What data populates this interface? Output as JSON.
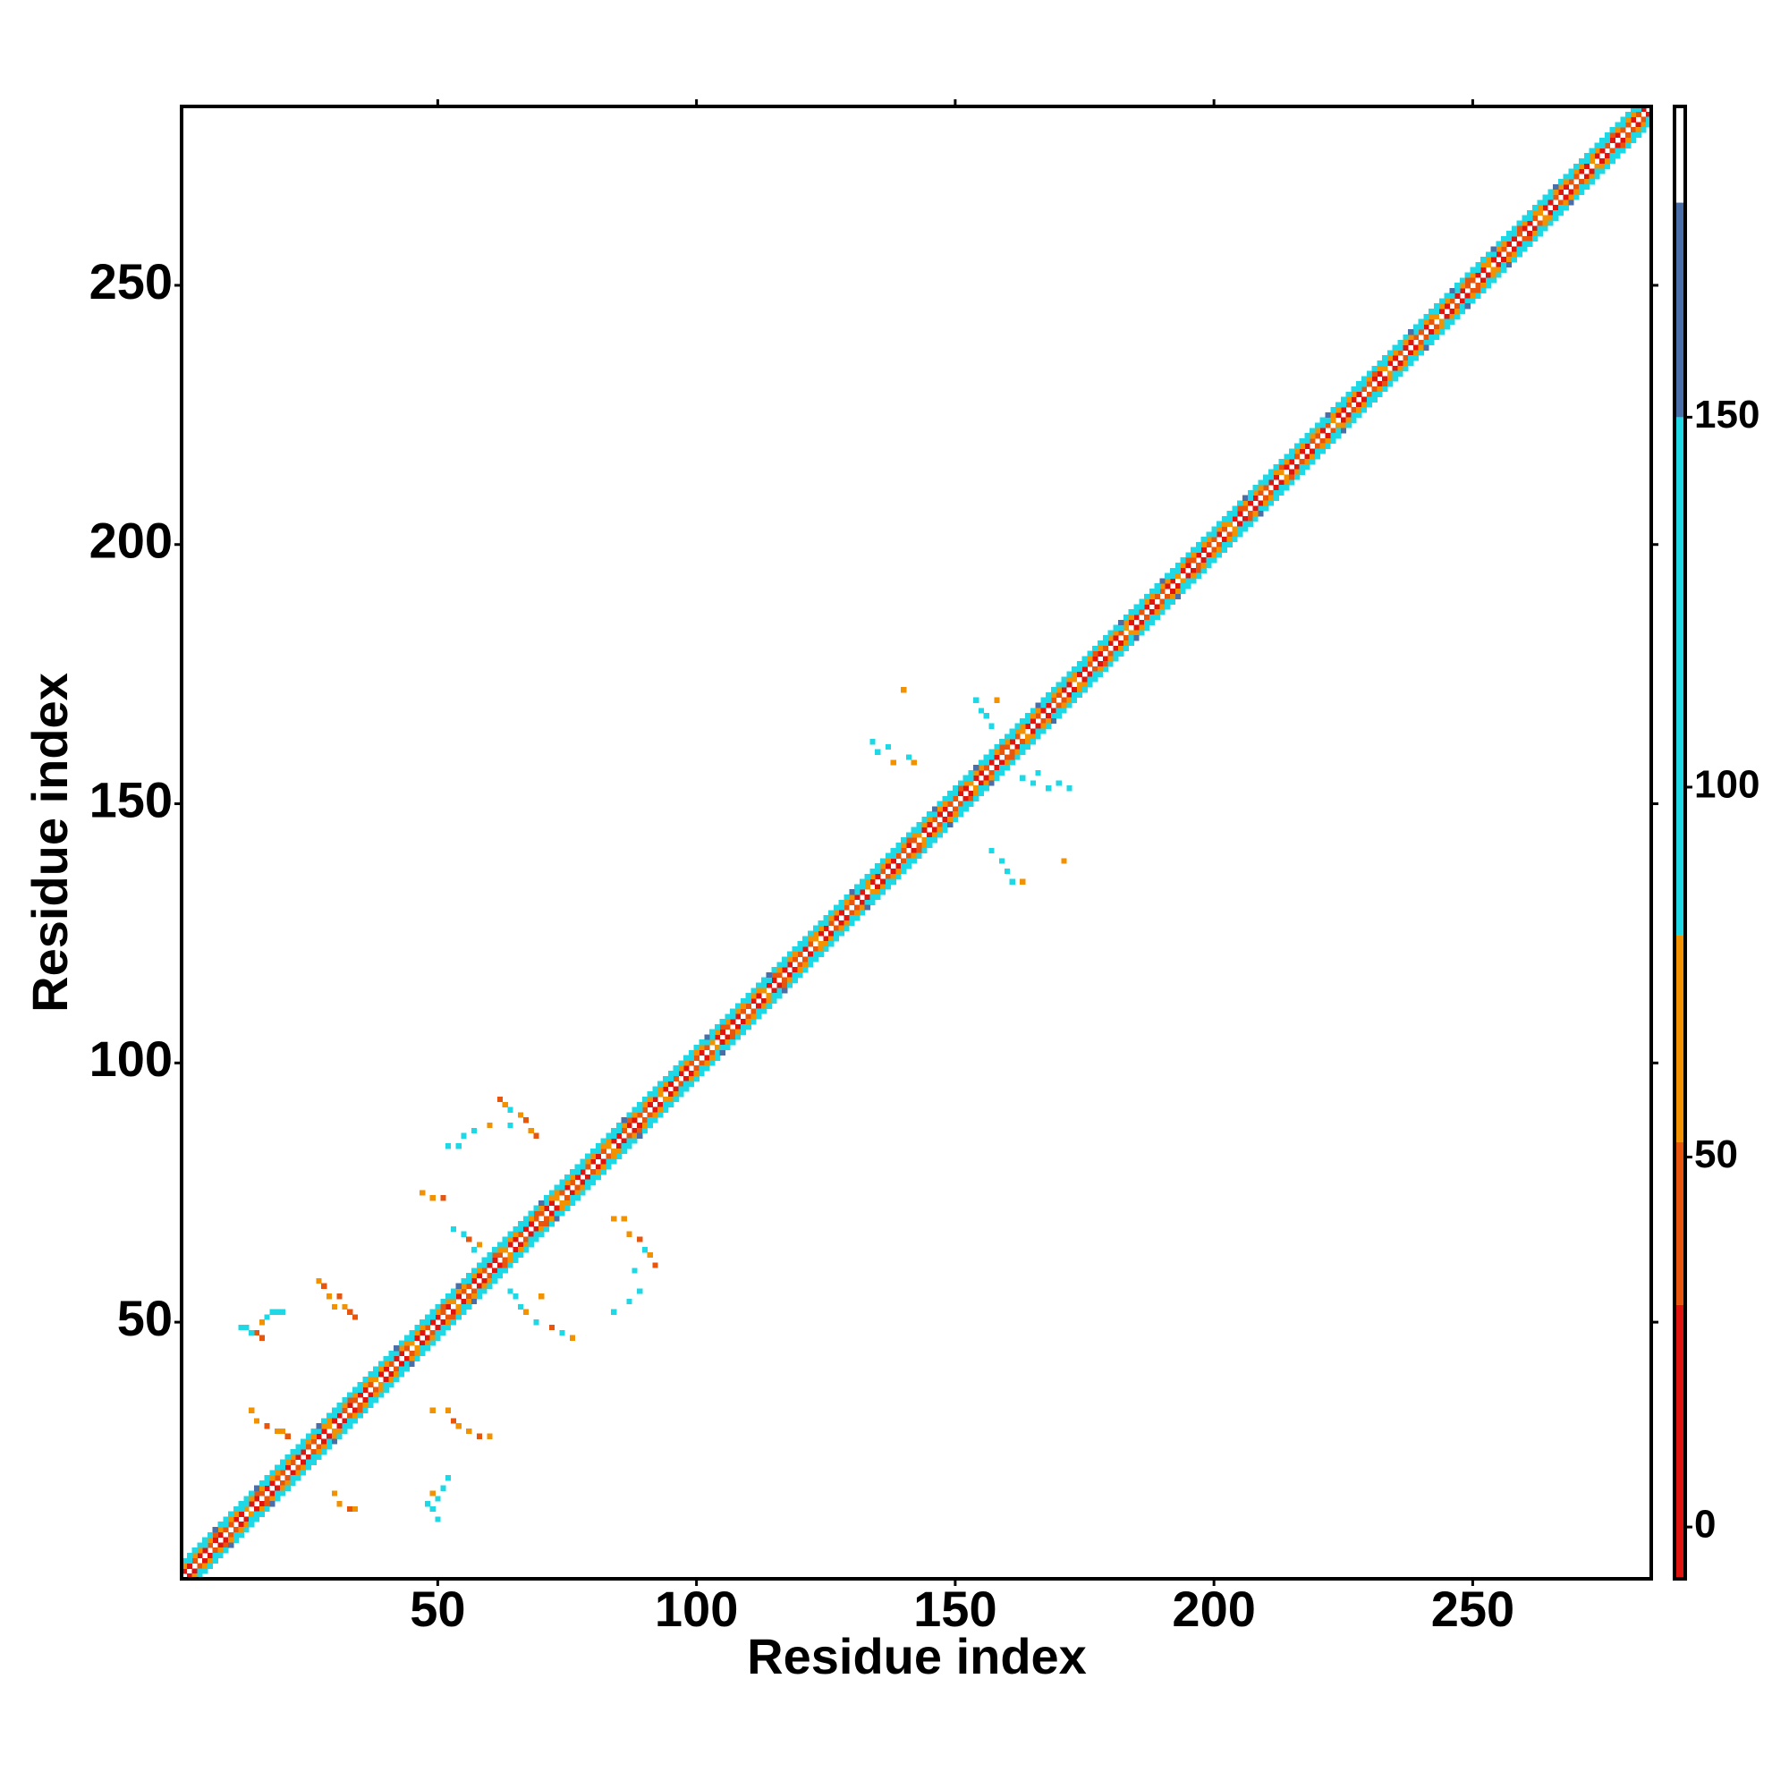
{
  "chart_data": {
    "type": "heatmap",
    "x_label": "Residue index",
    "y_label": "Residue index",
    "xlim": [
      0.5,
      284.5
    ],
    "ylim": [
      0.5,
      284.5
    ],
    "xticks": [
      50,
      100,
      150,
      200,
      250
    ],
    "yticks": [
      50,
      100,
      150,
      200,
      250
    ],
    "symmetric": true,
    "colorbar": {
      "lim": [
        -7,
        192
      ],
      "ticks": [
        0,
        50,
        100,
        150
      ],
      "bounds": [
        -7,
        30,
        52,
        80,
        150,
        179,
        192
      ],
      "colors": [
        "#e0140e",
        "#e8560e",
        "#f39200",
        "#1ed8e6",
        "#4a6fa8",
        "#ffffff"
      ]
    },
    "diagonals": [
      {
        "offset": 1,
        "values": [
          12,
          25,
          40,
          18,
          8,
          35,
          22,
          15,
          45,
          30,
          10,
          28,
          55,
          20,
          12,
          38,
          25,
          9,
          42,
          30,
          18,
          50,
          26,
          11,
          33,
          44,
          20,
          15,
          60,
          27,
          13,
          36,
          22,
          48,
          19,
          9,
          31,
          56,
          24,
          14,
          40,
          21,
          11,
          34,
          52,
          25,
          17,
          45,
          29,
          8,
          37,
          23,
          58,
          16,
          30,
          42,
          12,
          26,
          49,
          20,
          10,
          33,
          55,
          22,
          14,
          41,
          28,
          9,
          36,
          47,
          19,
          25,
          53,
          31,
          12,
          39,
          24,
          16,
          44,
          27,
          11,
          35,
          57,
          21,
          15,
          43,
          26,
          10,
          32,
          50,
          18,
          29,
          61,
          23,
          13,
          40,
          25,
          17,
          46,
          30,
          9,
          37,
          54,
          20,
          14,
          42,
          27,
          12,
          34,
          48,
          22,
          16,
          58,
          28,
          11,
          39,
          24,
          15,
          45,
          31,
          10,
          36,
          52,
          19,
          13,
          41,
          26,
          8,
          33,
          49,
          21,
          17,
          55,
          29,
          12,
          38,
          23,
          14,
          47,
          32,
          11,
          35,
          59,
          22,
          15,
          44,
          25,
          10,
          31,
          51,
          18,
          27,
          62,
          24,
          13,
          40,
          26,
          16,
          43,
          30,
          9,
          37,
          53,
          21,
          14,
          45,
          28,
          11,
          34,
          48,
          20,
          16,
          57,
          27,
          12,
          39,
          25,
          15,
          46,
          29,
          10,
          36,
          52,
          23,
          13,
          42,
          26,
          9,
          32,
          50,
          19,
          28,
          60,
          22,
          14,
          41,
          24,
          17,
          44,
          31,
          11,
          38,
          55,
          20,
          15,
          43,
          27,
          10,
          35,
          47,
          21,
          16,
          58,
          26,
          12,
          39,
          23,
          14,
          48,
          30,
          9,
          34,
          53,
          22,
          13,
          41,
          25,
          11,
          33,
          51,
          18,
          29,
          61,
          24,
          15,
          40,
          27,
          16,
          45,
          32,
          10,
          37,
          56,
          21,
          14,
          44,
          26,
          12,
          31,
          49,
          20,
          17,
          54,
          28,
          11,
          38,
          24,
          15,
          46,
          29,
          8,
          35,
          52,
          23,
          13,
          42,
          27,
          10,
          34,
          50,
          19,
          26,
          59,
          25,
          12,
          40,
          22,
          16,
          43,
          31,
          11,
          36,
          20
        ]
      },
      {
        "offset": 2,
        "values": [
          62,
          85,
          70,
          55,
          90,
          76,
          48,
          66,
          88,
          72,
          58,
          95,
          81,
          64,
          50,
          78,
          92,
          69,
          57,
          84,
          71,
          60,
          93,
          86,
          52,
          67,
          89,
          74,
          59,
          96,
          80,
          63,
          49,
          77,
          91,
          68,
          56,
          83,
          73,
          61,
          94,
          87,
          53,
          65,
          90,
          75,
          58,
          97,
          82,
          62,
          51,
          79,
          92,
          70,
          54,
          85,
          72,
          60,
          95,
          88,
          50,
          66,
          91,
          76,
          57,
          98,
          81,
          64,
          48,
          78,
          93,
          69,
          55,
          86,
          74,
          59,
          96,
          84,
          52,
          68,
          89,
          73,
          61,
          95,
          80,
          63,
          50,
          77,
          90,
          71,
          56,
          84,
          70,
          58,
          94,
          87,
          54,
          67,
          92,
          75,
          60,
          97,
          83,
          62,
          49,
          79,
          91,
          68,
          57,
          85,
          72,
          61,
          93,
          86,
          51,
          65,
          88,
          74,
          58,
          96,
          82,
          64,
          52,
          76,
          92,
          70,
          55,
          83,
          73,
          60,
          95,
          88,
          53,
          66,
          90,
          77,
          59,
          98,
          81,
          63,
          48,
          78,
          94,
          69,
          56,
          87,
          71,
          59,
          97,
          85,
          50,
          67,
          89,
          75,
          61,
          94,
          80,
          62,
          51,
          79,
          93,
          68,
          54,
          84,
          72,
          58,
          96,
          86,
          52,
          65,
          91,
          76,
          57,
          95,
          82,
          64,
          49,
          77,
          90,
          70,
          55,
          86,
          74,
          61,
          94,
          83,
          53,
          66,
          88,
          73,
          60,
          97,
          81,
          63,
          50,
          78,
          92,
          69,
          56,
          85,
          71,
          59,
          95,
          87,
          51,
          67,
          90,
          75,
          58,
          96,
          84,
          62,
          48,
          79,
          93,
          68,
          55,
          83,
          72,
          60,
          94,
          88,
          52,
          64,
          89,
          76,
          61,
          98,
          80,
          65,
          50,
          77,
          91,
          70,
          57,
          84,
          73,
          58,
          96,
          86,
          53,
          66,
          92,
          74,
          59,
          95,
          82,
          63,
          49,
          78,
          94,
          69,
          54,
          85,
          71,
          61,
          97,
          87,
          51,
          68,
          90,
          75,
          60,
          94,
          81,
          64,
          52,
          76,
          92,
          71,
          56,
          86,
          72,
          59,
          95,
          83,
          50,
          67,
          89,
          77,
          62,
          84
        ]
      },
      {
        "offset": 3,
        "values": [
          110,
          95,
          130,
          88,
          120,
          105,
          150,
          92,
          115,
          99,
          140,
          86,
          125,
          108,
          160,
          94,
          118,
          102,
          135,
          90,
          122,
          97,
          145,
          89,
          112,
          104,
          155,
          93,
          128,
          100,
          138,
          87,
          116,
          107,
          148,
          91,
          124,
          98,
          132,
          96,
          108,
          152,
          90,
          119,
          103,
          142,
          88,
          126,
          101,
          136,
          94,
          114,
          109,
          158,
          92,
          121,
          97,
          131,
          86,
          117,
          105,
          146,
          93,
          129,
          99,
          139,
          89,
          113,
          106,
          153,
          95,
          123,
          100,
          134,
          87,
          118,
          110,
          144,
          91,
          127,
          98,
          137,
          96,
          115,
          104,
          156,
          90,
          120,
          102,
          141,
          88,
          125,
          107,
          149,
          94,
          111,
          99,
          133,
          92,
          128,
          106,
          151,
          89,
          117,
          103,
          143,
          95,
          124,
          101,
          135,
          86,
          114,
          109,
          159,
          93,
          122,
          97,
          130,
          90,
          119,
          104,
          147,
          92,
          126,
          100,
          140,
          88,
          112,
          108,
          154,
          96,
          121,
          98,
          136,
          87,
          116,
          111,
          145,
          94,
          129,
          99,
          138,
          91,
          118,
          105,
          157,
          89,
          123,
          102,
          142,
          95,
          113,
          107,
          150,
          93,
          120,
          97,
          132,
          86,
          127,
          103,
          144,
          90,
          115,
          109,
          155,
          94,
          125,
          100,
          139,
          88,
          117,
          106,
          148,
          92,
          128,
          98,
          134,
          96,
          111,
          107,
          153,
          87,
          121,
          101,
          141,
          93,
          114,
          110,
          160,
          91,
          126,
          99,
          137,
          89,
          119,
          104,
          146,
          95,
          130,
          97,
          135,
          92,
          116,
          108,
          152,
          88,
          124,
          102,
          143,
          94,
          112,
          105,
          149,
          90,
          127,
          100,
          133,
          86,
          120,
          106,
          158,
          93,
          118,
          99,
          140,
          89,
          123,
          111,
          147,
          96,
          115,
          103,
          136,
          91,
          129,
          98,
          154,
          87,
          122,
          104,
          142,
          95,
          113,
          109,
          150,
          92,
          125,
          101,
          138,
          88,
          117,
          107,
          156,
          94,
          121,
          97,
          131,
          90,
          128,
          100,
          145,
          89,
          119,
          105,
          153,
          93,
          114,
          108,
          139,
          96,
          126,
          102,
          148,
          91,
          116,
          99,
          134,
          87,
          124,
          110
        ]
      }
    ],
    "contacts": {
      "x": [
        12,
        13,
        15,
        16,
        17,
        18,
        19,
        20,
        16,
        14,
        27,
        28,
        29,
        31,
        32,
        33,
        30,
        34,
        14,
        15,
        17,
        19,
        20,
        21,
        30,
        31,
        33,
        34,
        48,
        49,
        50,
        51,
        52,
        50,
        49,
        49,
        52,
        53,
        54,
        56,
        58,
        60,
        52,
        54,
        55,
        57,
        62,
        63,
        64,
        66,
        67,
        68,
        69,
        60,
        64,
        47,
        49,
        51,
        53,
        55,
        56,
        57,
        58,
        64,
        65,
        66,
        67,
        69,
        70,
        72,
        74,
        76,
        84,
        86,
        87,
        89,
        90,
        91,
        92,
        88,
        89,
        87,
        84,
        134,
        135,
        137,
        138,
        140,
        141,
        142,
        154,
        155,
        156,
        157,
        163,
        165,
        166,
        168,
        170,
        172,
        158,
        157,
        159,
        160,
        161,
        163,
        171
      ],
      "y": [
        49,
        49,
        48,
        50,
        51,
        52,
        52,
        52,
        47,
        48,
        58,
        57,
        55,
        55,
        53,
        52,
        53,
        51,
        33,
        31,
        30,
        29,
        29,
        28,
        17,
        15,
        14,
        14,
        15,
        14,
        16,
        18,
        20,
        12,
        17,
        33,
        33,
        31,
        30,
        29,
        28,
        28,
        84,
        84,
        86,
        87,
        93,
        92,
        91,
        90,
        89,
        87,
        86,
        88,
        88,
        75,
        74,
        74,
        68,
        67,
        66,
        64,
        65,
        56,
        55,
        53,
        52,
        50,
        55,
        49,
        48,
        47,
        70,
        70,
        67,
        66,
        64,
        63,
        61,
        60,
        56,
        54,
        52,
        162,
        160,
        161,
        158,
        172,
        159,
        158,
        170,
        168,
        167,
        165,
        155,
        154,
        156,
        153,
        154,
        153,
        170,
        141,
        139,
        137,
        135,
        135,
        139
      ],
      "values": [
        95,
        92,
        40,
        60,
        95,
        96,
        88,
        92,
        35,
        90,
        55,
        45,
        60,
        42,
        65,
        50,
        70,
        38,
        55,
        62,
        45,
        60,
        70,
        40,
        60,
        55,
        45,
        58,
        95,
        88,
        92,
        90,
        96,
        90,
        60,
        60,
        55,
        45,
        70,
        58,
        40,
        62,
        95,
        92,
        90,
        96,
        45,
        55,
        95,
        60,
        50,
        62,
        40,
        58,
        94,
        60,
        55,
        45,
        92,
        95,
        45,
        90,
        60,
        95,
        90,
        92,
        60,
        95,
        58,
        45,
        90,
        55,
        55,
        60,
        62,
        45,
        90,
        58,
        40,
        95,
        92,
        90,
        95,
        95,
        92,
        90,
        60,
        55,
        96,
        58,
        95,
        92,
        96,
        90,
        95,
        92,
        94,
        90,
        96,
        95,
        60,
        92,
        95,
        90,
        94,
        55,
        60
      ]
    }
  }
}
